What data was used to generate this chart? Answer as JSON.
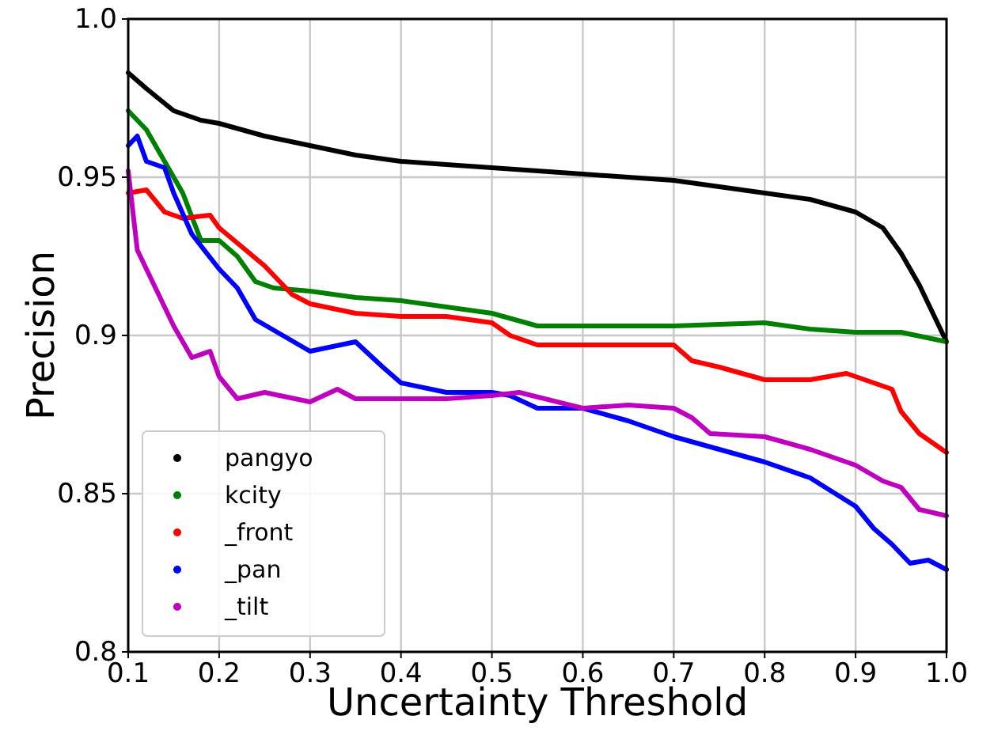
{
  "chart_data": {
    "type": "line",
    "xlabel": "Uncertainty Threshold",
    "ylabel": "Precision",
    "xlim": [
      0.1,
      1.0
    ],
    "ylim": [
      0.8,
      1.0
    ],
    "xticks": [
      0.1,
      0.2,
      0.3,
      0.4,
      0.5,
      0.6,
      0.7,
      0.8,
      0.9,
      {
        "value": 1.0,
        "label": "1.0"
      }
    ],
    "yticks": [
      {
        "value": 0.8,
        "label": "0.8"
      },
      0.85,
      0.9,
      0.95,
      {
        "value": 1.0,
        "label": "1.0"
      }
    ],
    "grid": true,
    "legend": "bottom left",
    "line_style": "solid",
    "series": [
      {
        "name": "pangyo",
        "color": "#000000",
        "x": [
          0.1,
          0.12,
          0.15,
          0.18,
          0.2,
          0.25,
          0.3,
          0.35,
          0.4,
          0.45,
          0.5,
          0.55,
          0.6,
          0.65,
          0.7,
          0.75,
          0.8,
          0.85,
          0.9,
          0.93,
          0.95,
          0.97,
          1.0
        ],
        "values": [
          0.983,
          0.978,
          0.971,
          0.968,
          0.967,
          0.963,
          0.96,
          0.957,
          0.955,
          0.954,
          0.953,
          0.952,
          0.951,
          0.95,
          0.949,
          0.947,
          0.945,
          0.943,
          0.939,
          0.934,
          0.926,
          0.916,
          0.898
        ]
      },
      {
        "name": "kcity",
        "color": "#008000",
        "x": [
          0.1,
          0.12,
          0.14,
          0.16,
          0.18,
          0.2,
          0.22,
          0.24,
          0.26,
          0.3,
          0.35,
          0.4,
          0.45,
          0.5,
          0.55,
          0.6,
          0.7,
          0.8,
          0.85,
          0.9,
          0.95,
          1.0
        ],
        "values": [
          0.971,
          0.965,
          0.955,
          0.945,
          0.93,
          0.93,
          0.925,
          0.917,
          0.915,
          0.914,
          0.912,
          0.911,
          0.909,
          0.907,
          0.903,
          0.903,
          0.903,
          0.904,
          0.902,
          0.901,
          0.901,
          0.898
        ]
      },
      {
        "name": "_front",
        "color": "#ff0000",
        "x": [
          0.1,
          0.12,
          0.14,
          0.16,
          0.19,
          0.2,
          0.25,
          0.28,
          0.3,
          0.35,
          0.4,
          0.45,
          0.5,
          0.52,
          0.55,
          0.6,
          0.65,
          0.7,
          0.72,
          0.75,
          0.8,
          0.85,
          0.89,
          0.9,
          0.94,
          0.95,
          0.97,
          1.0
        ],
        "values": [
          0.945,
          0.946,
          0.939,
          0.937,
          0.938,
          0.934,
          0.922,
          0.913,
          0.91,
          0.907,
          0.906,
          0.906,
          0.904,
          0.9,
          0.897,
          0.897,
          0.897,
          0.897,
          0.892,
          0.89,
          0.886,
          0.886,
          0.888,
          0.887,
          0.883,
          0.876,
          0.869,
          0.863
        ]
      },
      {
        "name": "_pan",
        "color": "#0000ff",
        "x": [
          0.1,
          0.11,
          0.12,
          0.14,
          0.15,
          0.17,
          0.2,
          0.22,
          0.24,
          0.27,
          0.3,
          0.35,
          0.38,
          0.4,
          0.45,
          0.5,
          0.52,
          0.55,
          0.6,
          0.65,
          0.7,
          0.75,
          0.8,
          0.85,
          0.9,
          0.92,
          0.94,
          0.96,
          0.98,
          1.0
        ],
        "values": [
          0.96,
          0.963,
          0.955,
          0.953,
          0.945,
          0.932,
          0.921,
          0.915,
          0.905,
          0.9,
          0.895,
          0.898,
          0.89,
          0.885,
          0.882,
          0.882,
          0.881,
          0.877,
          0.877,
          0.873,
          0.868,
          0.864,
          0.86,
          0.855,
          0.846,
          0.839,
          0.834,
          0.828,
          0.829,
          0.826
        ]
      },
      {
        "name": "_tilt",
        "color": "#bf00bf",
        "x": [
          0.1,
          0.11,
          0.13,
          0.15,
          0.17,
          0.19,
          0.2,
          0.22,
          0.25,
          0.3,
          0.33,
          0.35,
          0.4,
          0.45,
          0.5,
          0.53,
          0.6,
          0.65,
          0.7,
          0.72,
          0.74,
          0.8,
          0.85,
          0.9,
          0.93,
          0.95,
          0.97,
          1.0
        ],
        "values": [
          0.952,
          0.927,
          0.915,
          0.903,
          0.893,
          0.895,
          0.887,
          0.88,
          0.882,
          0.879,
          0.883,
          0.88,
          0.88,
          0.88,
          0.881,
          0.882,
          0.877,
          0.878,
          0.877,
          0.874,
          0.869,
          0.868,
          0.864,
          0.859,
          0.854,
          0.852,
          0.845,
          0.843
        ]
      }
    ]
  }
}
